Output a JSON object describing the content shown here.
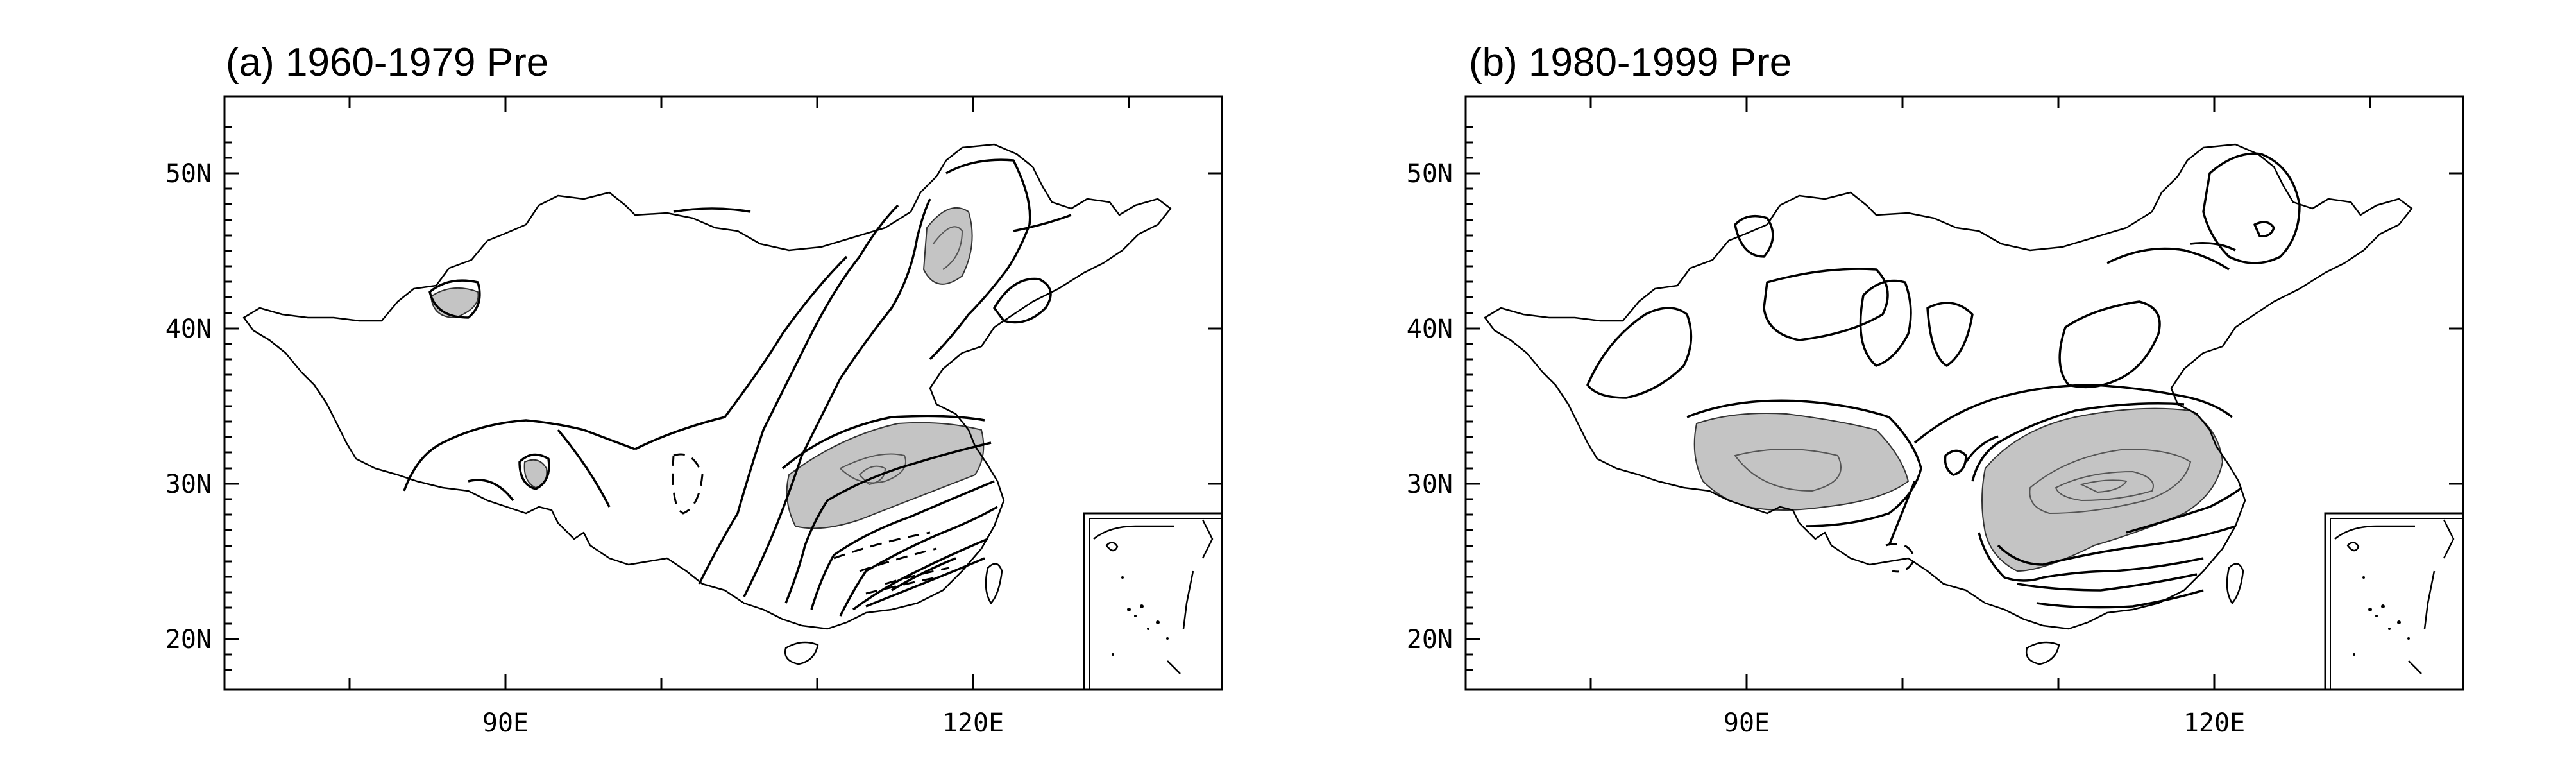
{
  "panels": [
    {
      "title": "(a)  1960-1979 Pre",
      "lat_labels": [
        "50N",
        "40N",
        "30N",
        "20N"
      ],
      "lon_labels": [
        "90E",
        "120E"
      ]
    },
    {
      "title": "(b)  1980-1999 Pre",
      "lat_labels": [
        "50N",
        "40N",
        "30N",
        "20N"
      ],
      "lon_labels": [
        "90E",
        "120E"
      ]
    }
  ],
  "colors": {
    "shading": "#c4c4c4",
    "lines": "#000000"
  }
}
